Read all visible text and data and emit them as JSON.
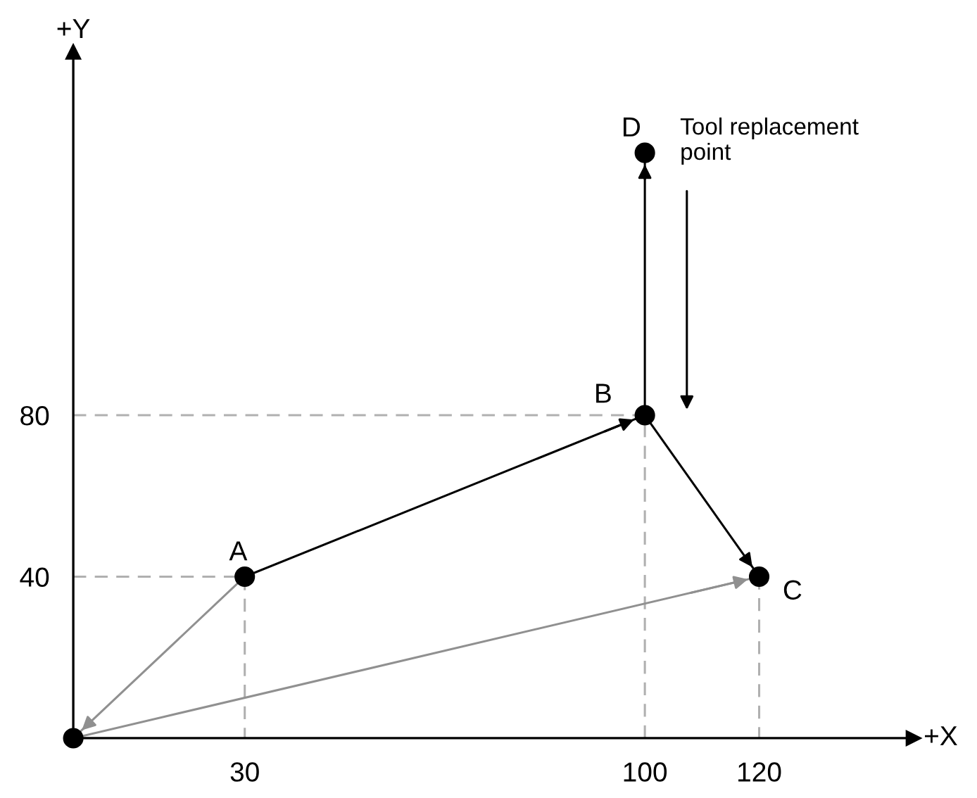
{
  "chart_data": {
    "type": "scatter",
    "xlabel": "+X",
    "ylabel": "+Y",
    "xlim": [
      0,
      147
    ],
    "ylim": [
      0,
      170
    ],
    "xticks": [
      30,
      100,
      120
    ],
    "yticks": [
      40,
      80
    ],
    "grid": false,
    "series": [
      {
        "type": "line",
        "x": [
          0,
          30,
          30
        ],
        "values": [
          40,
          40,
          0
        ],
        "color": "#b0b0b0",
        "line_style": "dashed",
        "marker": "none"
      },
      {
        "type": "line",
        "x": [
          0,
          100,
          100
        ],
        "values": [
          80,
          80,
          0
        ],
        "color": "#b0b0b0",
        "line_style": "dashed",
        "marker": "none"
      },
      {
        "type": "line",
        "x": [
          120,
          120
        ],
        "values": [
          40,
          0
        ],
        "color": "#b0b0b0",
        "line_style": "dashed",
        "marker": "none"
      },
      {
        "type": "line",
        "x": [
          30,
          0
        ],
        "values": [
          40,
          0
        ],
        "color": "#909090",
        "line_style": "solid",
        "marker": "none"
      },
      {
        "type": "line",
        "x": [
          0,
          120
        ],
        "values": [
          0,
          40
        ],
        "color": "#909090",
        "line_style": "solid",
        "marker": "none"
      },
      {
        "type": "line",
        "x": [
          30,
          100
        ],
        "values": [
          40,
          80
        ],
        "color": "#000000",
        "line_style": "solid",
        "marker": "none"
      },
      {
        "type": "line",
        "x": [
          100,
          100
        ],
        "values": [
          80,
          145
        ],
        "color": "#000000",
        "line_style": "solid",
        "marker": "none"
      },
      {
        "type": "line",
        "x": [
          100,
          120
        ],
        "values": [
          80,
          40
        ],
        "color": "#000000",
        "line_style": "solid",
        "marker": "none"
      },
      {
        "x": [
          0,
          30,
          100,
          120,
          100
        ],
        "values": [
          0,
          40,
          80,
          40,
          145
        ],
        "color": "#000000",
        "marker": "circle"
      }
    ],
    "annotations": [
      {
        "text": "A",
        "x": 30,
        "y": 40
      },
      {
        "text": "B",
        "x": 100,
        "y": 80
      },
      {
        "text": "C",
        "x": 120,
        "y": 40
      },
      {
        "text": "D",
        "x": 100,
        "y": 145
      },
      {
        "text": "Tool replacement point",
        "x": 100,
        "y": 145
      }
    ]
  }
}
